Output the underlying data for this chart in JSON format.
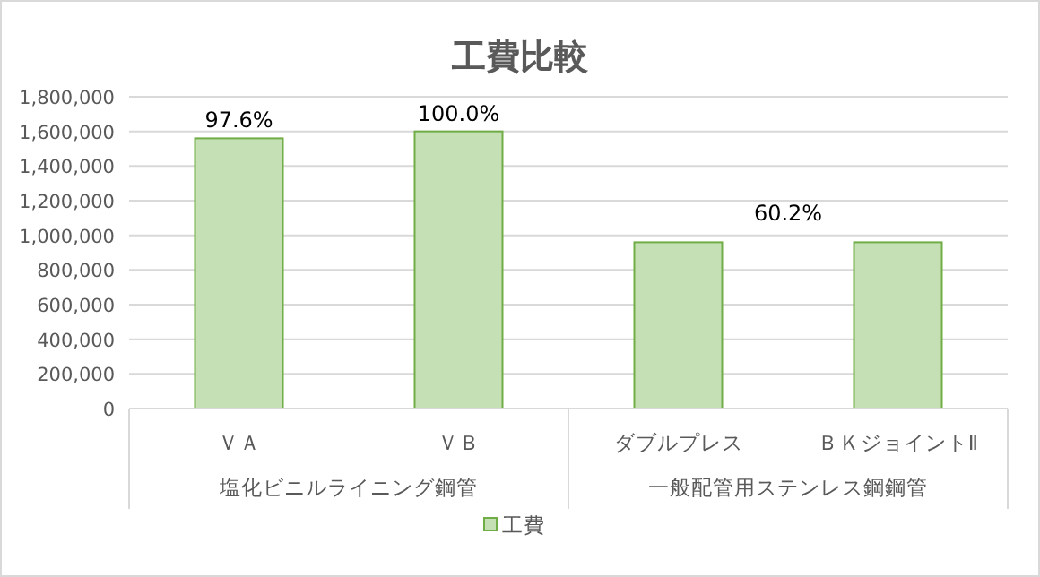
{
  "chart_data": {
    "type": "bar",
    "title": "工費比較",
    "categories": [
      "ＶＡ",
      "ＶＢ",
      "ダブルプレス",
      "ＢＫジョイントⅡ"
    ],
    "series": [
      {
        "name": "工費",
        "color": "#c5e0b4",
        "values": [
          1560000,
          1600000,
          960000,
          960000
        ]
      }
    ],
    "ylim": [
      0,
      1800000
    ],
    "yticks": [
      {
        "value": 0,
        "label": "0"
      },
      {
        "value": 200000,
        "label": "200,000"
      },
      {
        "value": 400000,
        "label": "400,000"
      },
      {
        "value": 600000,
        "label": "600,000"
      },
      {
        "value": 800000,
        "label": "800,000"
      },
      {
        "value": 1000000,
        "label": "1,000,000"
      },
      {
        "value": 1200000,
        "label": "1,200,000"
      },
      {
        "value": 1400000,
        "label": "1,400,000"
      },
      {
        "value": 1600000,
        "label": "1,600,000"
      },
      {
        "value": 1800000,
        "label": "1,800,000"
      }
    ],
    "annotations": [
      {
        "text": "97.6%",
        "x": "ＶＡ",
        "y": 1560000
      },
      {
        "text": "100.0%",
        "x": "ＶＢ",
        "y": 1600000
      },
      "塩化ビニルライニング鋼管",
      "一般配管用ステンレス鋼鋼管",
      "60.2%"
    ],
    "grid": "y",
    "legend": "bottom"
  }
}
